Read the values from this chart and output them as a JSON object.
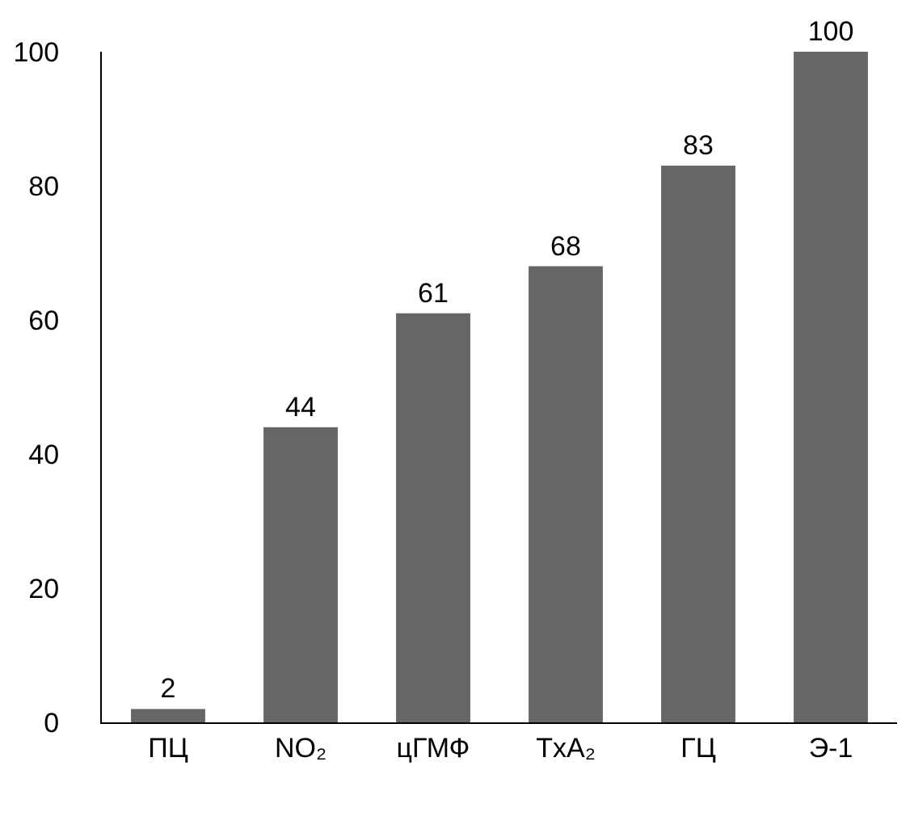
{
  "chart_data": {
    "type": "bar",
    "categories": [
      "ПЦ",
      "NO₂",
      "цГМФ",
      "TxA₂",
      "ГЦ",
      "Э-1"
    ],
    "values": [
      2,
      44,
      61,
      68,
      83,
      100
    ],
    "color": "#666666",
    "ylim": [
      0,
      100
    ],
    "yticks": [
      0,
      20,
      40,
      60,
      80,
      100
    ],
    "legend": false,
    "data_labels": true
  }
}
